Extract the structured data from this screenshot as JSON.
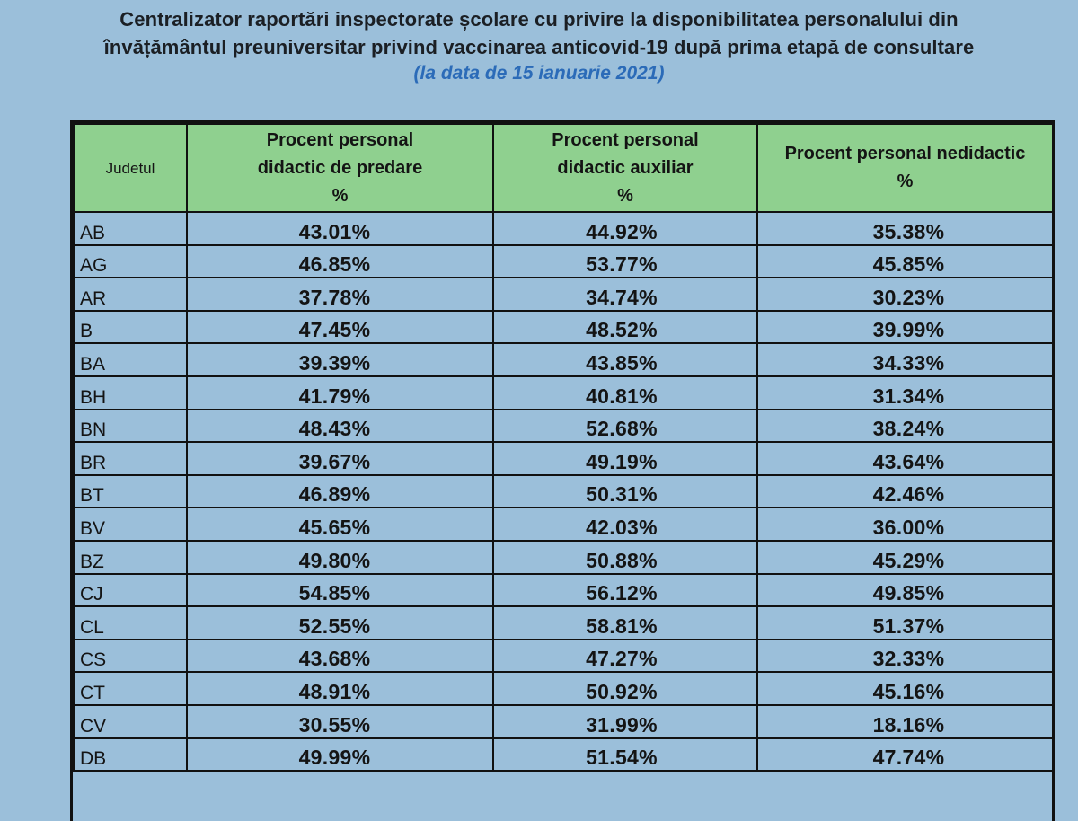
{
  "document": {
    "title_line1": "Centralizator raportări inspectorate școlare cu privire la disponibilitatea personalului din",
    "title_line2": "învățământul preuniversitar privind vaccinarea anticovid-19 după prima etapă de consultare",
    "subtitle": "(la data de 15 ianuarie 2021)"
  },
  "table": {
    "headers": {
      "judet": "Judetul",
      "col1": [
        "Procent personal",
        "didactic de predare",
        "%"
      ],
      "col2": [
        "Procent personal",
        "didactic auxiliar",
        "%"
      ],
      "col3": [
        "Procent personal nedidactic",
        "%"
      ]
    },
    "rows": [
      {
        "judet": "AB",
        "predare": "43.01%",
        "auxiliar": "44.92%",
        "nedidactic": "35.38%"
      },
      {
        "judet": "AG",
        "predare": "46.85%",
        "auxiliar": "53.77%",
        "nedidactic": "45.85%"
      },
      {
        "judet": "AR",
        "predare": "37.78%",
        "auxiliar": "34.74%",
        "nedidactic": "30.23%"
      },
      {
        "judet": "B",
        "predare": "47.45%",
        "auxiliar": "48.52%",
        "nedidactic": "39.99%"
      },
      {
        "judet": "BA",
        "predare": "39.39%",
        "auxiliar": "43.85%",
        "nedidactic": "34.33%"
      },
      {
        "judet": "BH",
        "predare": "41.79%",
        "auxiliar": "40.81%",
        "nedidactic": "31.34%"
      },
      {
        "judet": "BN",
        "predare": "48.43%",
        "auxiliar": "52.68%",
        "nedidactic": "38.24%"
      },
      {
        "judet": "BR",
        "predare": "39.67%",
        "auxiliar": "49.19%",
        "nedidactic": "43.64%"
      },
      {
        "judet": "BT",
        "predare": "46.89%",
        "auxiliar": "50.31%",
        "nedidactic": "42.46%"
      },
      {
        "judet": "BV",
        "predare": "45.65%",
        "auxiliar": "42.03%",
        "nedidactic": "36.00%"
      },
      {
        "judet": "BZ",
        "predare": "49.80%",
        "auxiliar": "50.88%",
        "nedidactic": "45.29%"
      },
      {
        "judet": "CJ",
        "predare": "54.85%",
        "auxiliar": "56.12%",
        "nedidactic": "49.85%"
      },
      {
        "judet": "CL",
        "predare": "52.55%",
        "auxiliar": "58.81%",
        "nedidactic": "51.37%"
      },
      {
        "judet": "CS",
        "predare": "43.68%",
        "auxiliar": "47.27%",
        "nedidactic": "32.33%"
      },
      {
        "judet": "CT",
        "predare": "48.91%",
        "auxiliar": "50.92%",
        "nedidactic": "45.16%"
      },
      {
        "judet": "CV",
        "predare": "30.55%",
        "auxiliar": "31.99%",
        "nedidactic": "18.16%"
      },
      {
        "judet": "DB",
        "predare": "49.99%",
        "auxiliar": "51.54%",
        "nedidactic": "47.74%"
      }
    ]
  }
}
